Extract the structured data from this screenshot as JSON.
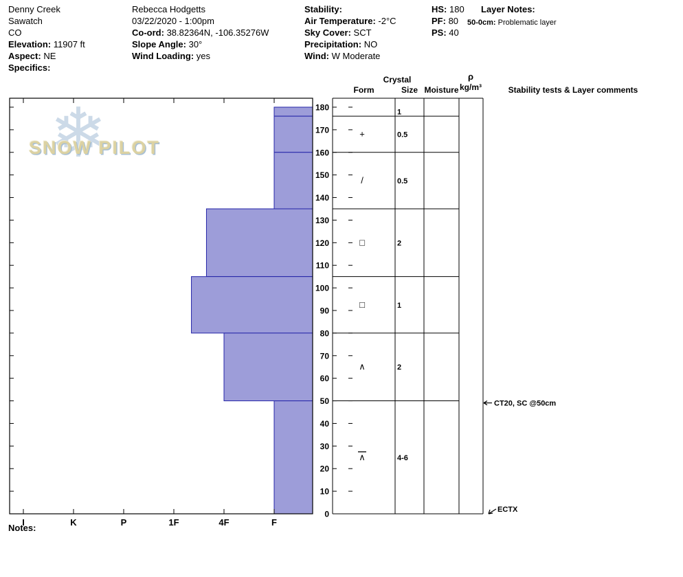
{
  "header": {
    "site": {
      "name": "Denny Creek",
      "range": "Sawatch",
      "state": "CO",
      "elevation_label": "Elevation:",
      "elevation_value": "11907 ft",
      "aspect_label": "Aspect:",
      "aspect_value": "NE",
      "specifics_label": "Specifics:"
    },
    "observer": {
      "name": "Rebecca Hodgetts",
      "datetime": "03/22/2020 - 1:00pm",
      "coord_label": "Co-ord:",
      "coord_value": "38.82364N, -106.35276W",
      "slope_label": "Slope Angle:",
      "slope_value": "30°",
      "wind_loading_label": "Wind Loading:",
      "wind_loading_value": "yes"
    },
    "conditions": {
      "stability_label": "Stability:",
      "stability_value": "",
      "air_temp_label": "Air Temperature:",
      "air_temp_value": "-2°C",
      "sky_label": "Sky Cover:",
      "sky_value": "SCT",
      "precip_label": "Precipitation:",
      "precip_value": "NO",
      "wind_label": "Wind:",
      "wind_value": "W Moderate"
    },
    "snowpack": {
      "hs_label": "HS:",
      "hs_value": "180",
      "pf_label": "PF:",
      "pf_value": "80",
      "ps_label": "PS:",
      "ps_value": "40"
    },
    "layer_notes": {
      "title": "Layer Notes:",
      "note_range": "50-0cm:",
      "note_text": "Problematic layer"
    }
  },
  "footer": {
    "notes_label": "Notes:"
  },
  "watermark": {
    "brand": "SNOW PILOT",
    "snowflake_icon": "❄"
  },
  "chart_data": {
    "type": "snow-profile",
    "depth_axis": {
      "unit": "cm",
      "min": 0,
      "max": 180,
      "tick_step": 10,
      "surface": 180
    },
    "hardness_axis": {
      "labels": [
        "I",
        "K",
        "P",
        "1F",
        "4F",
        "F"
      ],
      "order": "hard-to-soft"
    },
    "column_headers": {
      "crystal": "Crystal",
      "form": "Form",
      "size": "Size",
      "moisture": "Moisture",
      "density_symbol": "ρ",
      "density_unit": "kg/m³",
      "stability": "Stability tests & Layer comments"
    },
    "layers": [
      {
        "top_cm": 180,
        "bottom_cm": 176,
        "hardness": "F",
        "hardness_num": 1,
        "form": "",
        "form_overline": false,
        "size_mm": "1",
        "moisture": "",
        "density": ""
      },
      {
        "top_cm": 176,
        "bottom_cm": 160,
        "hardness": "F",
        "hardness_num": 1,
        "form": "+",
        "form_overline": false,
        "size_mm": "0.5",
        "moisture": "",
        "density": ""
      },
      {
        "top_cm": 160,
        "bottom_cm": 135,
        "hardness": "F",
        "hardness_num": 1,
        "form": "/",
        "form_overline": false,
        "size_mm": "0.5",
        "moisture": "",
        "density": ""
      },
      {
        "top_cm": 135,
        "bottom_cm": 105,
        "hardness": "4F+",
        "hardness_num": 2.35,
        "form": "□",
        "form_overline": false,
        "size_mm": "2",
        "moisture": "",
        "density": ""
      },
      {
        "top_cm": 105,
        "bottom_cm": 80,
        "hardness": "1F-",
        "hardness_num": 2.65,
        "form": "□",
        "form_overline": false,
        "size_mm": "1",
        "moisture": "",
        "density": ""
      },
      {
        "top_cm": 80,
        "bottom_cm": 50,
        "hardness": "4F",
        "hardness_num": 2,
        "form": "∧",
        "form_overline": false,
        "size_mm": "2",
        "moisture": "",
        "density": ""
      },
      {
        "top_cm": 50,
        "bottom_cm": 0,
        "hardness": "F",
        "hardness_num": 1,
        "form": "∧",
        "form_overline": true,
        "size_mm": "4-6",
        "moisture": "",
        "density": ""
      }
    ],
    "stability_tests": [
      {
        "depth_cm": 50,
        "label": "CT20, SC @50cm",
        "arrow": "left"
      },
      {
        "depth_cm": 0,
        "label": "ECTX",
        "arrow": "down-left"
      }
    ],
    "colors": {
      "bar_fill": "#9d9dd9",
      "bar_stroke": "#2424a8",
      "axis": "#000000",
      "watermark_flake": "#c7d6e6",
      "watermark_text": "#dcd2a2"
    }
  }
}
